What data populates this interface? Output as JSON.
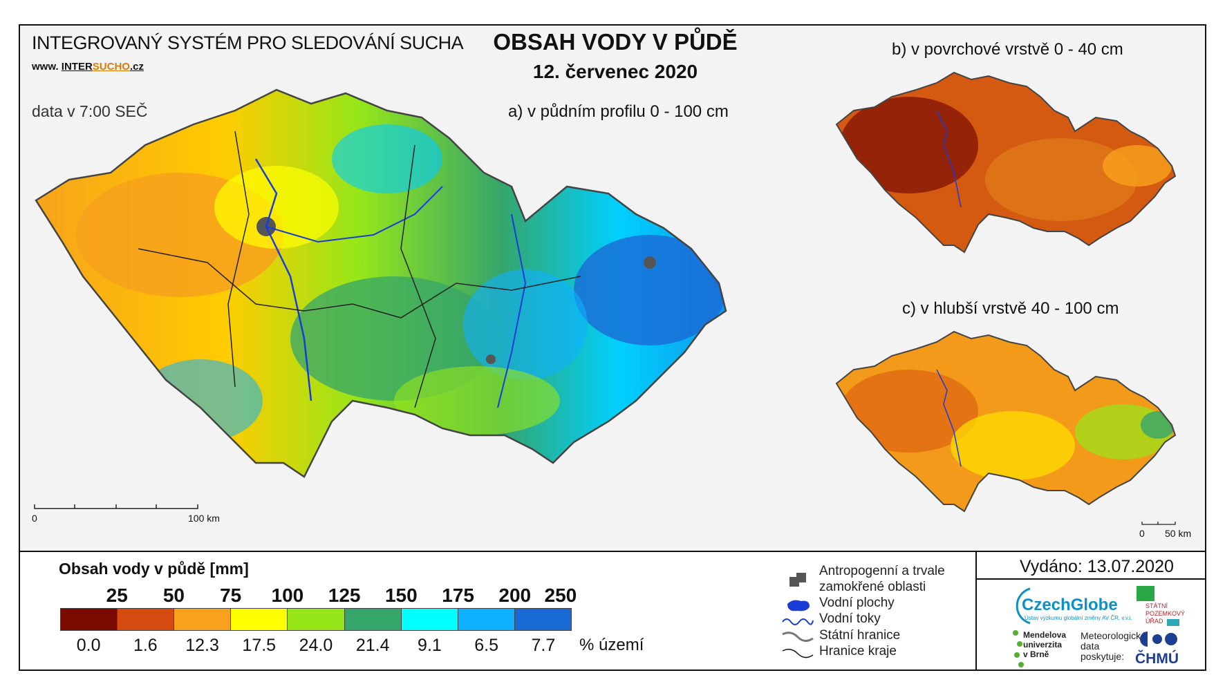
{
  "header": {
    "system_name": "INTEGROVANÝ SYSTÉM PRO SLEDOVÁNÍ SUCHA",
    "www_prefix": "www.",
    "www_inter": "INTER",
    "www_sucho": "SUCHO",
    "www_suffix": ".cz",
    "data_time": "data v 7:00 SEČ",
    "main_title": "OBSAH VODY V PŮDĚ",
    "date": "12. červenec 2020"
  },
  "maps": {
    "a_label": "a) v půdním profilu 0 - 100 cm",
    "b_label": "b) v povrchové vrstvě 0 - 40 cm",
    "c_label": "c) v hlubší vrstvě 40 - 100 cm",
    "scale_main": {
      "start": "0",
      "end": "100 km"
    },
    "scale_small": {
      "start": "0",
      "end": "50 km"
    }
  },
  "legend": {
    "title": "Obsah vody v půdě  [mm]",
    "breaks": [
      "25",
      "50",
      "75",
      "100",
      "125",
      "150",
      "175",
      "200",
      "250"
    ],
    "colors": [
      "#7a0a00",
      "#d44a10",
      "#f7a11c",
      "#ffff00",
      "#96e619",
      "#35a56a",
      "#00ffff",
      "#0fb0ff",
      "#1a6ad6"
    ],
    "percent": [
      "0.0",
      "1.6",
      "12.3",
      "17.5",
      "24.0",
      "21.4",
      "9.1",
      "6.5",
      "7.7"
    ],
    "percent_unit": "% území"
  },
  "symbols": {
    "anthropogenic": "Antropogenní a trvale",
    "anthropogenic2": "zamokřené oblasti",
    "water_areas": "Vodní plochy",
    "water_streams": "Vodní toky",
    "state_border": "Státní hranice",
    "region_border": "Hranice kraje"
  },
  "footer": {
    "issued": "Vydáno: 13.07.2020",
    "czechglobe": "CzechGlobe",
    "czechglobe_sub": "Ústav výzkumu globální změny AV ČR, v.v.i.",
    "spu1": "STÁTNÍ",
    "spu2": "POZEMKOVÝ",
    "spu3": "ÚŘAD",
    "mendel1": "Mendelova",
    "mendel2": "univerzita",
    "mendel3": "v Brně",
    "meteo1": "Meteorologická",
    "meteo2": "data",
    "meteo3": "poskytuje:",
    "chmu": "ČHMÚ"
  }
}
